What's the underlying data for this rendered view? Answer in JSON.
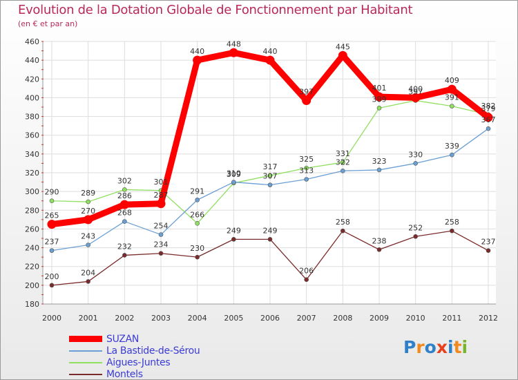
{
  "title": "Evolution de la Dotation Globale de Fonctionnement par Habitant",
  "subtitle": "(en € et par an)",
  "logo": {
    "text": "Proxiti",
    "letters": [
      "P",
      "r",
      "o",
      "x",
      "i",
      "t",
      "i"
    ],
    "colors": [
      "#2f80c8",
      "#f08a1e",
      "#2f80c8",
      "#e8401c",
      "#2f80c8",
      "#f08a1e",
      "#79b52a"
    ]
  },
  "chart_data": {
    "type": "line",
    "title": "Evolution de la Dotation Globale de Fonctionnement par Habitant",
    "subtitle": "(en € et par an)",
    "xlabel": "",
    "ylabel": "",
    "x": [
      "2000",
      "2001",
      "2002",
      "2003",
      "2004",
      "2005",
      "2006",
      "2007",
      "2008",
      "2009",
      "2010",
      "2011",
      "2012"
    ],
    "ylim": [
      180,
      460
    ],
    "yticks": [
      180,
      200,
      220,
      240,
      260,
      280,
      300,
      320,
      340,
      360,
      380,
      400,
      420,
      440,
      460
    ],
    "grid": true,
    "legend_position": "bottom-left",
    "series": [
      {
        "name": "SUZAN",
        "color": "#ff0000",
        "values": [
          265,
          270,
          286,
          287,
          440,
          448,
          440,
          397,
          445,
          401,
          400,
          409,
          379
        ]
      },
      {
        "name": "La Bastide-de-Sérou",
        "color": "#6a9fd4",
        "values": [
          237,
          243,
          268,
          254,
          291,
          310,
          307,
          313,
          322,
          323,
          330,
          339,
          367
        ]
      },
      {
        "name": "Aigues-Juntes",
        "color": "#90e060",
        "values": [
          290,
          289,
          302,
          301,
          266,
          309,
          317,
          325,
          331,
          389,
          397,
          391,
          382
        ]
      },
      {
        "name": "Montels",
        "color": "#7a2a2a",
        "values": [
          200,
          204,
          232,
          234,
          230,
          249,
          249,
          206,
          258,
          238,
          252,
          258,
          237
        ]
      }
    ]
  }
}
